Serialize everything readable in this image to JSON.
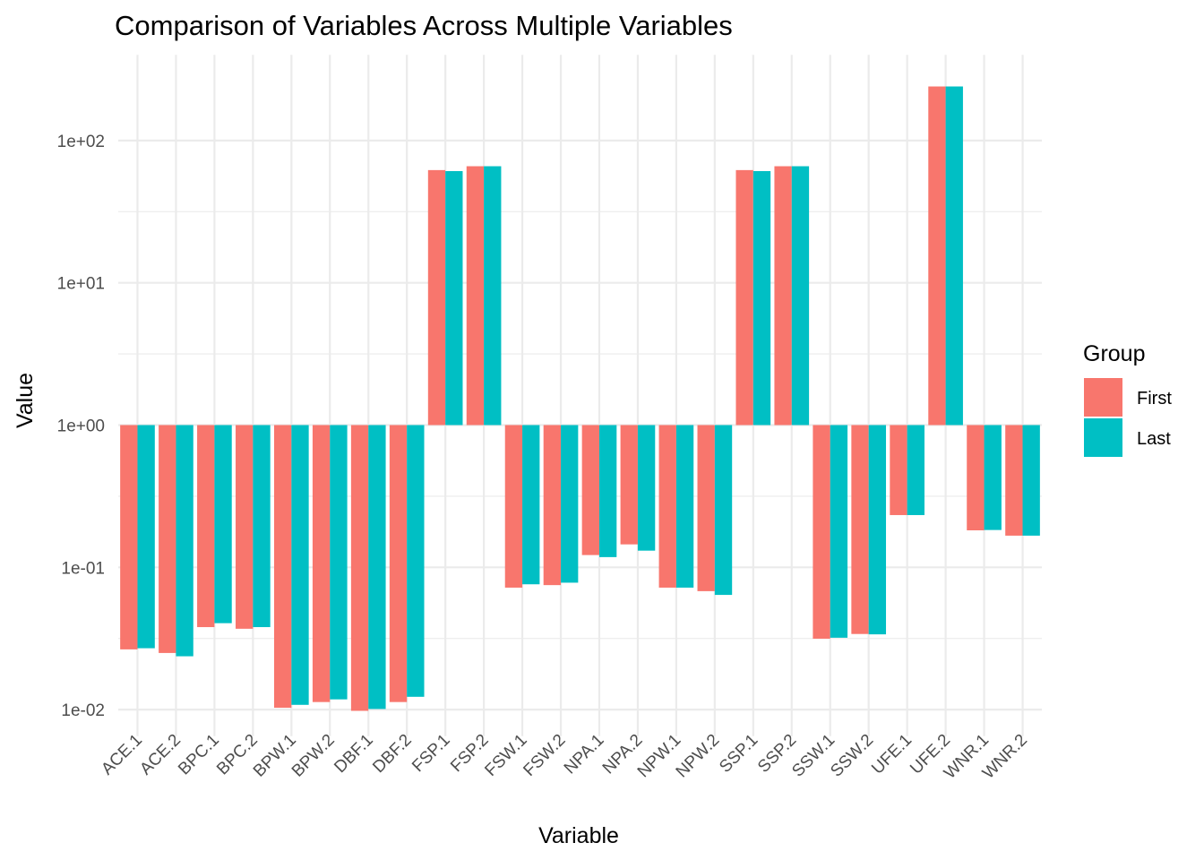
{
  "chart_data": {
    "type": "bar",
    "title": "Comparison of Variables Across Multiple Variables",
    "xlabel": "Variable",
    "ylabel": "Value",
    "y_scale": "log10",
    "y_baseline": 1,
    "ylim": [
      0.0065,
      400
    ],
    "y_ticks": [
      0.01,
      0.1,
      1,
      10,
      100
    ],
    "y_tick_labels": [
      "1e-02",
      "1e-01",
      "1e+00",
      "1e+01",
      "1e+02"
    ],
    "grid": true,
    "categories": [
      "ACE.1",
      "ACE.2",
      "BPC.1",
      "BPC.2",
      "BPW.1",
      "BPW.2",
      "DBF.1",
      "DBF.2",
      "FSP.1",
      "FSP.2",
      "FSW.1",
      "FSW.2",
      "NPA.1",
      "NPA.2",
      "NPW.1",
      "NPW.2",
      "SSP.1",
      "SSP.2",
      "SSW.1",
      "SSW.2",
      "UFE.1",
      "UFE.2",
      "WNR.1",
      "WNR.2"
    ],
    "legend": {
      "title": "Group",
      "position": "right"
    },
    "series": [
      {
        "name": "First",
        "color": "#F8766D",
        "values": [
          0.0265,
          0.025,
          0.038,
          0.037,
          0.0103,
          0.0113,
          0.0098,
          0.0113,
          62,
          66,
          0.072,
          0.075,
          0.122,
          0.145,
          0.072,
          0.068,
          62,
          66,
          0.0315,
          0.034,
          0.233,
          240,
          0.182,
          0.167
        ]
      },
      {
        "name": "Last",
        "color": "#00BFC4",
        "values": [
          0.027,
          0.0237,
          0.0405,
          0.038,
          0.0108,
          0.0118,
          0.0101,
          0.0123,
          61,
          66,
          0.076,
          0.078,
          0.118,
          0.131,
          0.072,
          0.064,
          61,
          66,
          0.032,
          0.0338,
          0.233,
          240,
          0.183,
          0.167
        ]
      }
    ]
  }
}
